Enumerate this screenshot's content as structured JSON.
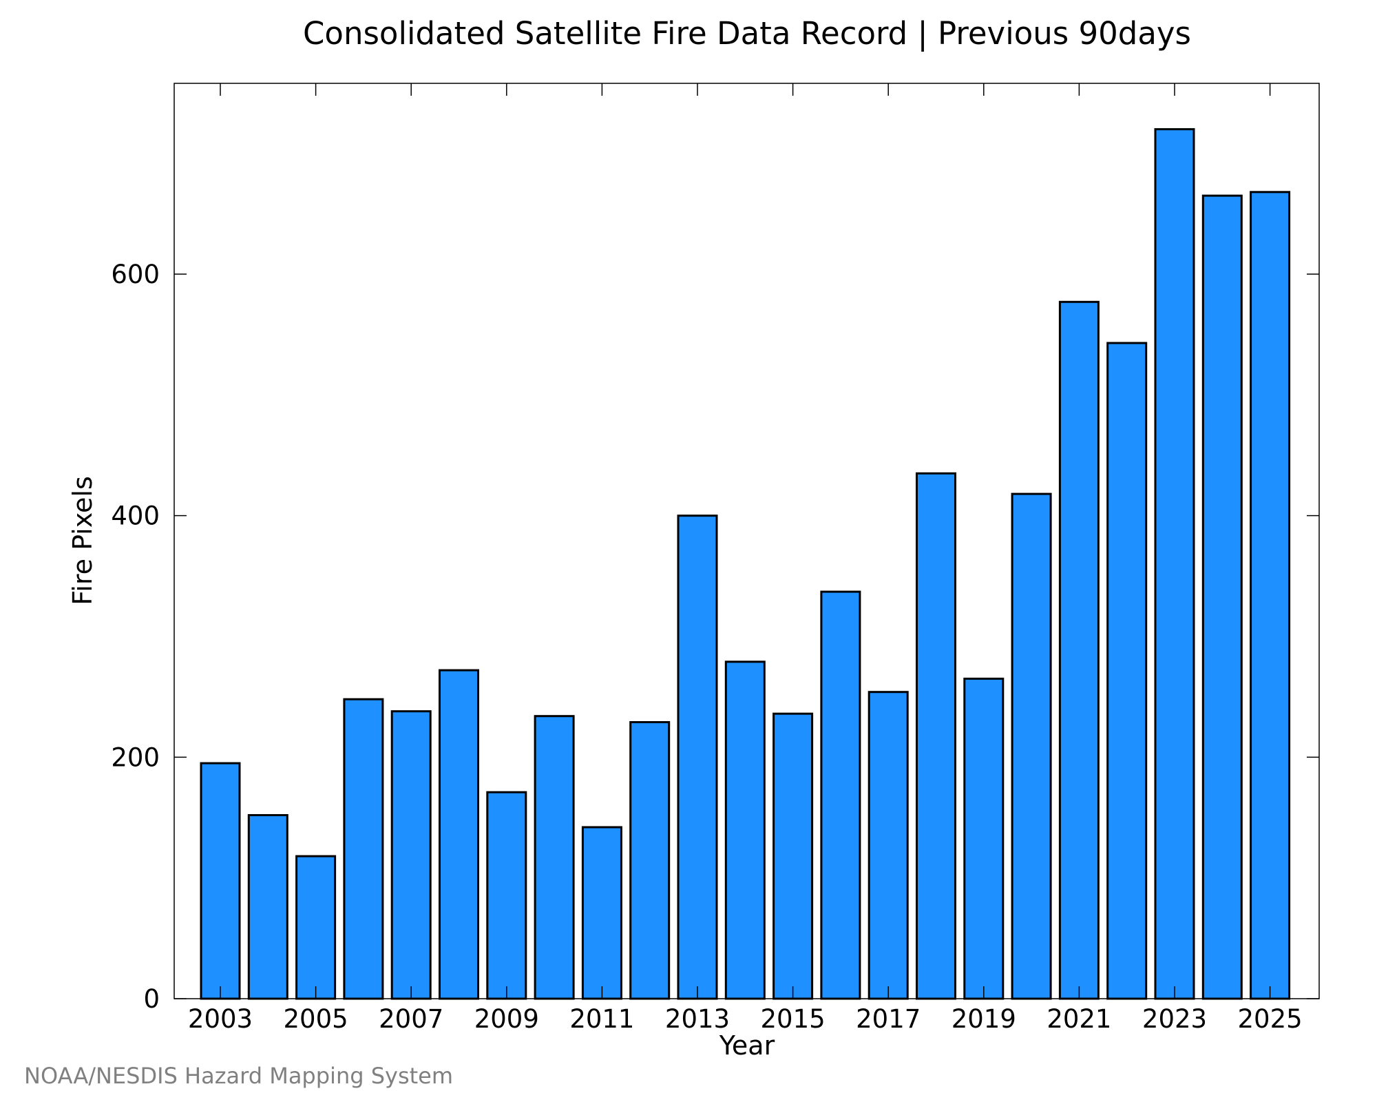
{
  "chart_data": {
    "type": "bar",
    "title": "Consolidated Satellite Fire Data Record | Previous 90days",
    "xlabel": "Year",
    "ylabel": "Fire Pixels",
    "categories": [
      "2003",
      "2004",
      "2005",
      "2006",
      "2007",
      "2008",
      "2009",
      "2010",
      "2011",
      "2012",
      "2013",
      "2014",
      "2015",
      "2016",
      "2017",
      "2018",
      "2019",
      "2020",
      "2021",
      "2022",
      "2023",
      "2024",
      "2025"
    ],
    "x_tick_labels": [
      "2003",
      "2005",
      "2007",
      "2009",
      "2011",
      "2013",
      "2015",
      "2017",
      "2019",
      "2021",
      "2023",
      "2025"
    ],
    "y_ticks": [
      0,
      200,
      400,
      600
    ],
    "y_tick_labels": [
      "0",
      "200",
      "400",
      "600"
    ],
    "values": [
      195,
      152,
      118,
      248,
      238,
      272,
      171,
      234,
      142,
      229,
      400,
      279,
      236,
      337,
      254,
      435,
      265,
      418,
      577,
      543,
      720,
      665,
      668
    ],
    "ylim": [
      0,
      758
    ],
    "grid": false,
    "legend": "none",
    "bar_color": "#1e90ff",
    "bar_edge_color": "#000000"
  },
  "footer": {
    "credit": "NOAA/NESDIS Hazard Mapping System"
  }
}
